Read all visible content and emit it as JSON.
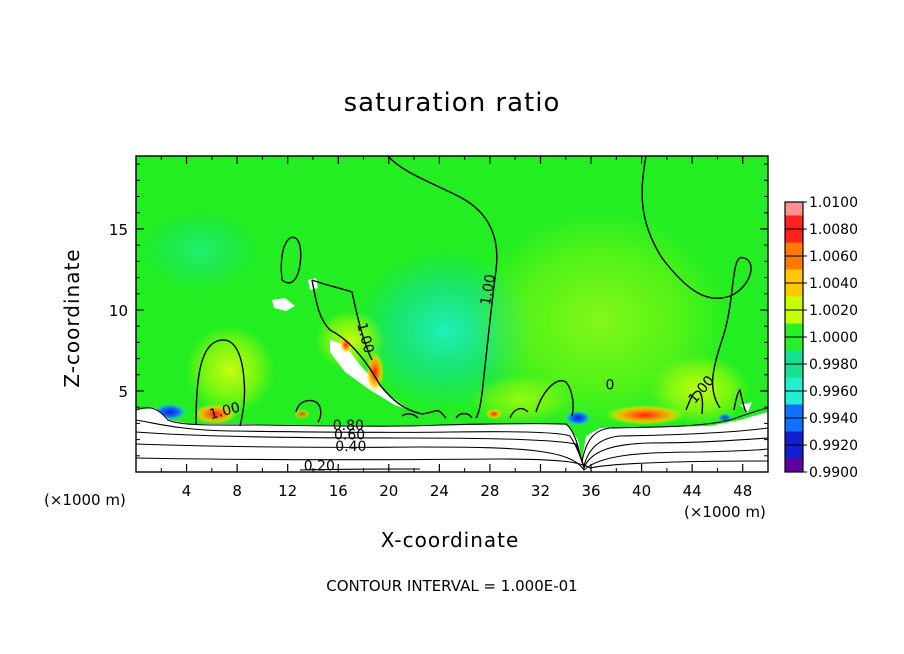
{
  "chart_data": {
    "type": "heatmap",
    "title": "saturation ratio",
    "xlabel": "X-coordinate",
    "ylabel": "Z-coordinate",
    "x_unit_label": "(×1000 m)",
    "xlim": [
      0,
      50
    ],
    "ylim": [
      0,
      19.5
    ],
    "x_ticks": [
      4,
      8,
      12,
      16,
      20,
      24,
      28,
      32,
      36,
      40,
      44,
      48
    ],
    "y_ticks": [
      5,
      10,
      15
    ],
    "colorbar": {
      "levels": [
        "1.0100",
        "1.0080",
        "1.0060",
        "1.0040",
        "1.0020",
        "1.0000",
        "0.9980",
        "0.9960",
        "0.9940",
        "0.9920",
        "0.9900"
      ],
      "colors": [
        "#ff9090",
        "#ff2020",
        "#ff7a00",
        "#ffc800",
        "#c8ff00",
        "#28f028",
        "#14e090",
        "#20f0d0",
        "#1070ff",
        "#1020d0",
        "#6000a0"
      ]
    },
    "contour_labels": [
      {
        "text": "1.00",
        "x": 7.1,
        "z": 3.5
      },
      {
        "text": "1.00",
        "x": 17.8,
        "z": 8.2
      },
      {
        "text": "1.00",
        "x": 28.2,
        "z": 11.2
      },
      {
        "text": "1.00",
        "x": 45.0,
        "z": 4.9
      },
      {
        "text": "0",
        "x": 37.5,
        "z": 5.1
      },
      {
        "text": "0.80",
        "x": 16.8,
        "z": 2.6
      },
      {
        "text": "0.60",
        "x": 16.9,
        "z": 2.0
      },
      {
        "text": "0.40",
        "x": 17.0,
        "z": 1.3
      },
      {
        "text": "0.20",
        "x": 14.5,
        "z": 0.1
      }
    ],
    "contour_interval_text": "CONTOUR INTERVAL = 1.000E-01"
  }
}
